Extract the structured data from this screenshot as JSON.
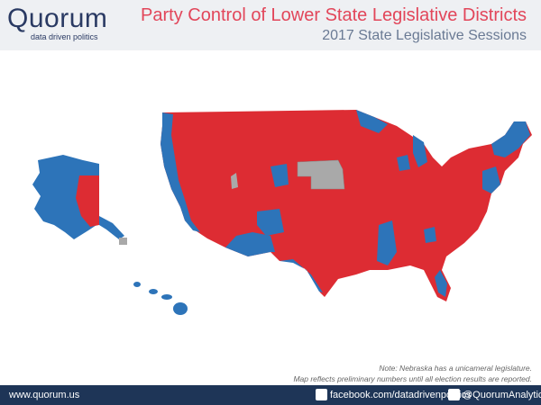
{
  "header": {
    "logo": "Quorum",
    "tagline": "data driven politics",
    "title": "Party Control of Lower State Legislative Districts",
    "subtitle": "2017 State Legislative Sessions"
  },
  "notes": [
    "Note: Nebraska has a unicameral legislature.",
    "Map reflects preliminary numbers until all election results are reported."
  ],
  "footer": {
    "website": "www.quorum.us",
    "facebook": "facebook.com/datadrivenpolitics",
    "twitter": "@QuorumAnalytics"
  }
}
